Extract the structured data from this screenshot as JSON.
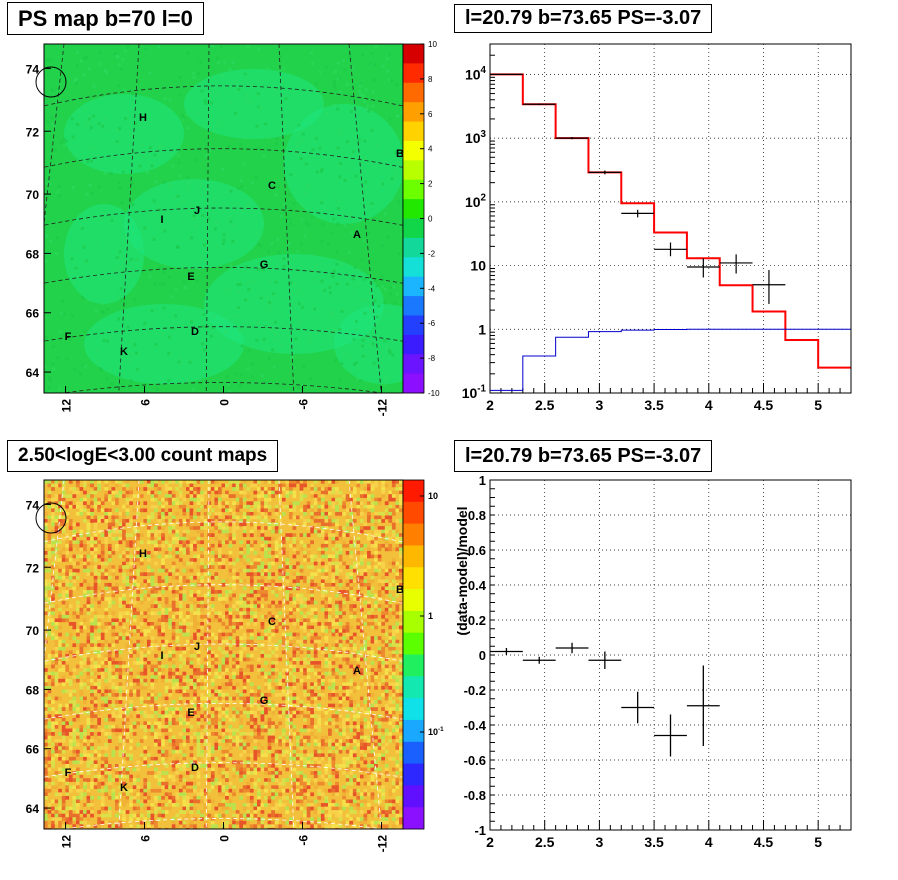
{
  "titles": {
    "ps_map": "PS map b=70 l=0",
    "spectrum": "l=20.79 b=73.65 PS=-3.07",
    "count_map": "2.50<logE<3.00 count maps",
    "residual": "l=20.79 b=73.65 PS=-3.07"
  },
  "maps": {
    "b_ticks": [
      "64",
      "66",
      "68",
      "70",
      "72",
      "74"
    ],
    "l_ticks": [
      "12",
      "6",
      "0",
      "-6",
      "-12"
    ],
    "source_labels": [
      "H",
      "B",
      "C",
      "J",
      "I",
      "A",
      "G",
      "E",
      "F",
      "D",
      "K"
    ],
    "colors": {
      "map_green": "#22d24a",
      "map_light": "#1fe67f",
      "count_base": "#f2c03a"
    }
  },
  "colorbars": {
    "ps_ticks": [
      "10",
      "8",
      "6",
      "4",
      "2",
      "0",
      "-2",
      "-4",
      "-6",
      "-8",
      "-10"
    ],
    "count_ticks": [
      "10",
      "1",
      "10^-1"
    ]
  },
  "chart_data": [
    {
      "type": "line",
      "panel": "spectrum",
      "title": "l=20.79 b=73.65 PS=-3.07",
      "xlabel": "",
      "ylabel": "",
      "xlim": [
        2,
        5.3
      ],
      "ylim": [
        0.1,
        30000
      ],
      "yscale": "log",
      "grid": true,
      "x_ticks": [
        "2",
        "2.5",
        "3",
        "3.5",
        "4",
        "4.5",
        "5"
      ],
      "y_ticks": [
        "10^-1",
        "1",
        "10",
        "10^2",
        "10^3",
        "10^4"
      ],
      "series": [
        {
          "color": "#ff0000",
          "style": "step",
          "bins": [
            [
              2.0,
              2.3,
              10000
            ],
            [
              2.3,
              2.6,
              3400
            ],
            [
              2.6,
              2.9,
              1000
            ],
            [
              2.9,
              3.2,
              290
            ],
            [
              3.2,
              3.5,
              95
            ],
            [
              3.5,
              3.8,
              33
            ],
            [
              3.8,
              4.1,
              13
            ],
            [
              4.1,
              4.4,
              4.9
            ],
            [
              4.4,
              4.7,
              1.9
            ],
            [
              4.7,
              5.0,
              0.68
            ],
            [
              5.0,
              5.3,
              0.25
            ]
          ]
        },
        {
          "color": "#000000",
          "style": "errorbar",
          "points": [
            {
              "x": 2.15,
              "y": 10000,
              "xerr": 0.15,
              "ylo": 9800,
              "yhi": 10200
            },
            {
              "x": 2.45,
              "y": 3400,
              "xerr": 0.15,
              "ylo": 3300,
              "yhi": 3500
            },
            {
              "x": 2.75,
              "y": 1000,
              "xerr": 0.15,
              "ylo": 960,
              "yhi": 1040
            },
            {
              "x": 3.05,
              "y": 290,
              "xerr": 0.15,
              "ylo": 270,
              "yhi": 310
            },
            {
              "x": 3.35,
              "y": 66,
              "xerr": 0.15,
              "ylo": 57,
              "yhi": 75
            },
            {
              "x": 3.65,
              "y": 18,
              "xerr": 0.15,
              "ylo": 14,
              "yhi": 23
            },
            {
              "x": 3.95,
              "y": 9.5,
              "xerr": 0.15,
              "ylo": 6.5,
              "yhi": 13
            },
            {
              "x": 4.25,
              "y": 11,
              "xerr": 0.15,
              "ylo": 7.5,
              "yhi": 15
            },
            {
              "x": 4.55,
              "y": 5,
              "xerr": 0.15,
              "ylo": 2.5,
              "yhi": 8.5
            }
          ]
        },
        {
          "color": "#0000cc",
          "style": "step",
          "bins": [
            [
              2.0,
              2.3,
              0.11
            ],
            [
              2.3,
              2.6,
              0.38
            ],
            [
              2.6,
              2.9,
              0.75
            ],
            [
              2.9,
              3.2,
              0.92
            ],
            [
              3.2,
              3.5,
              0.97
            ],
            [
              3.5,
              3.8,
              0.99
            ],
            [
              3.8,
              4.1,
              1.0
            ],
            [
              4.1,
              4.4,
              1.0
            ],
            [
              4.4,
              4.7,
              1.0
            ],
            [
              4.7,
              5.0,
              1.0
            ],
            [
              5.0,
              5.3,
              1.0
            ]
          ]
        }
      ]
    },
    {
      "type": "scatter",
      "panel": "residual",
      "title": "l=20.79 b=73.65 PS=-3.07",
      "xlabel": "",
      "ylabel": "(data-model)/model",
      "xlim": [
        2,
        5.3
      ],
      "ylim": [
        -1,
        1
      ],
      "grid": true,
      "x_ticks": [
        "2",
        "2.5",
        "3",
        "3.5",
        "4",
        "4.5",
        "5"
      ],
      "y_ticks": [
        "-1",
        "-0.8",
        "-0.6",
        "-0.4",
        "-0.2",
        "0",
        "0.2",
        "0.4",
        "0.6",
        "0.8",
        "1"
      ],
      "points": [
        {
          "x": 2.15,
          "y": 0.02,
          "xerr": 0.15,
          "yerr": 0.02
        },
        {
          "x": 2.45,
          "y": -0.03,
          "xerr": 0.15,
          "yerr": 0.02
        },
        {
          "x": 2.75,
          "y": 0.04,
          "xerr": 0.15,
          "yerr": 0.03
        },
        {
          "x": 3.05,
          "y": -0.03,
          "xerr": 0.15,
          "yerr": 0.05
        },
        {
          "x": 3.35,
          "y": -0.3,
          "xerr": 0.15,
          "yerr": 0.09
        },
        {
          "x": 3.65,
          "y": -0.46,
          "xerr": 0.15,
          "yerr": 0.12
        },
        {
          "x": 3.95,
          "y": -0.29,
          "xerr": 0.15,
          "yerr": 0.23
        }
      ]
    }
  ]
}
